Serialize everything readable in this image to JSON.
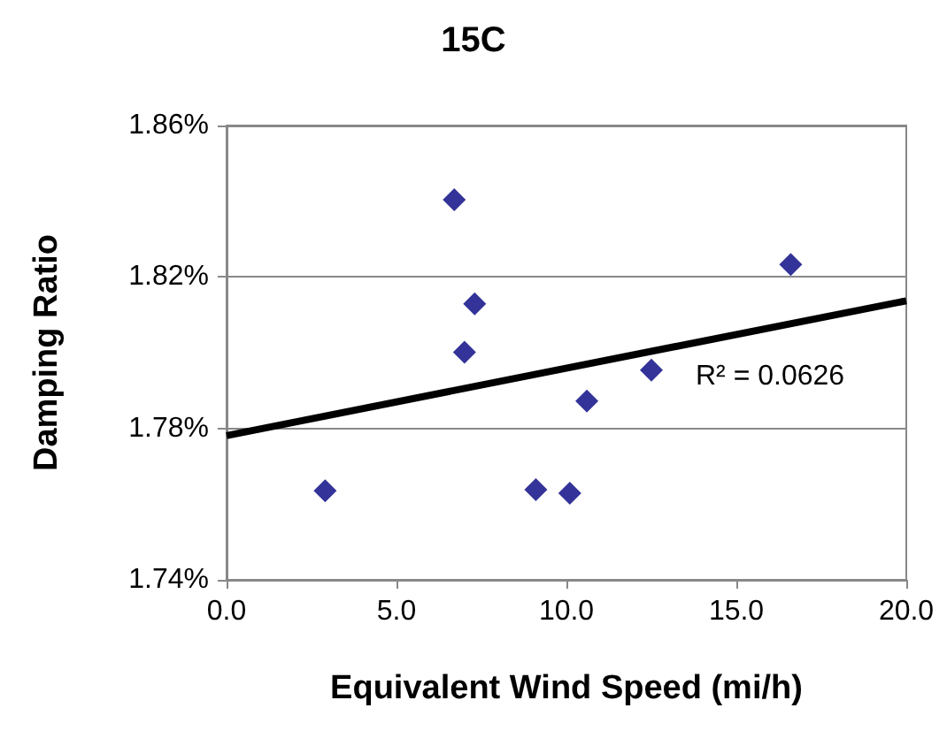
{
  "chart_data": {
    "type": "scatter",
    "title": "15C",
    "xlabel": "Equivalent Wind Speed (mi/h)",
    "ylabel": "Damping Ratio",
    "x": [
      2.9,
      6.7,
      7.3,
      7.0,
      9.1,
      10.1,
      10.6,
      12.5,
      16.6
    ],
    "series": [
      {
        "color": "#000080",
        "marker": "diamond",
        "values": [
          1.7635,
          1.8404,
          1.8129,
          1.8001,
          1.7638,
          1.7629,
          1.7872,
          1.7954,
          1.8233
        ]
      },
      {
        "type": "line",
        "color": "#000000",
        "marker": "none",
        "x": [
          0,
          20
        ],
        "values": [
          1.7781,
          1.8137
        ]
      }
    ],
    "xlim": [
      0,
      20
    ],
    "xticks": [
      {
        "value": 0,
        "label": "0.0"
      },
      {
        "value": 5,
        "label": "5.0"
      },
      {
        "value": 10,
        "label": "10.0"
      },
      {
        "value": 15,
        "label": "15.0"
      },
      {
        "value": 20,
        "label": "20.0"
      }
    ],
    "ylim": [
      1.74,
      1.86
    ],
    "yticks": [
      {
        "value": 1.74,
        "label": "1.74%"
      },
      {
        "value": 1.78,
        "label": "1.78%"
      },
      {
        "value": 1.82,
        "label": "1.82%"
      },
      {
        "value": 1.86,
        "label": "1.86%"
      }
    ],
    "grid": "y",
    "annotations": [
      "R² = 0.0626"
    ]
  }
}
